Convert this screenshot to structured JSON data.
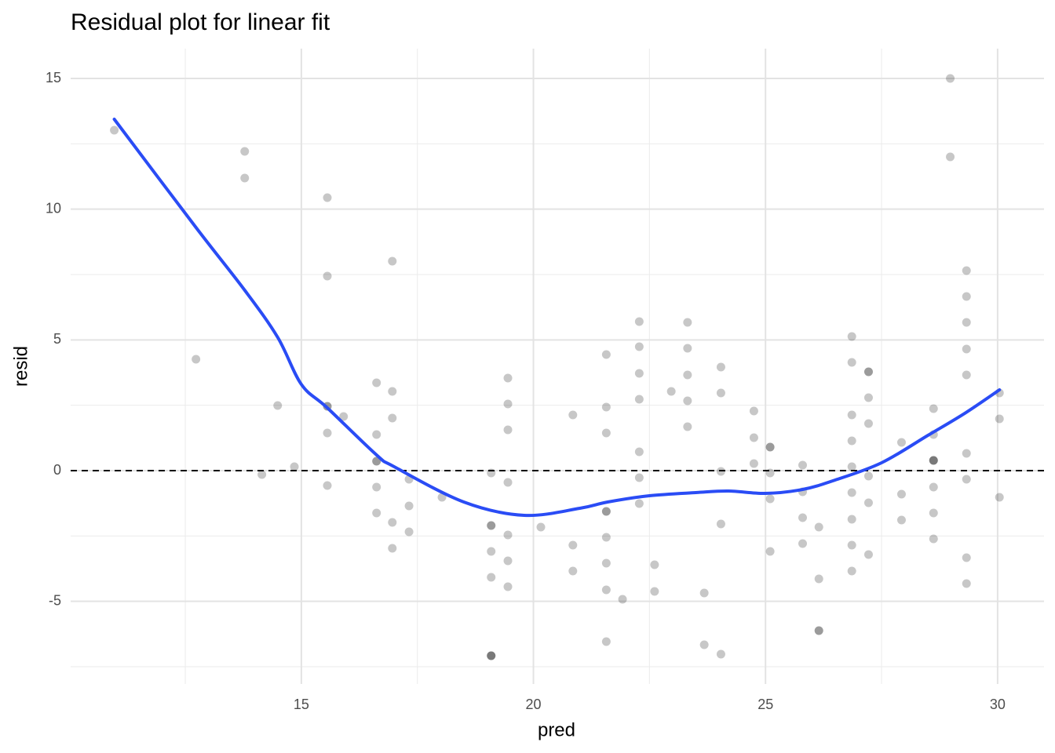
{
  "chart_data": {
    "type": "scatter",
    "title": "Residual plot for linear fit",
    "x_label": "pred",
    "y_label": "resid",
    "xlim": [
      10.03,
      31.0
    ],
    "ylim": [
      -8.16,
      16.14
    ],
    "xticks": [
      15,
      20,
      25,
      30
    ],
    "yticks": [
      -5,
      0,
      5,
      10,
      15
    ],
    "grid": true,
    "point_color": "#000000",
    "point_opacity": 0.22,
    "x": [
      10.97,
      12.73,
      13.78,
      13.78,
      14.15,
      14.49,
      14.85,
      15.56,
      15.56,
      15.56,
      15.56,
      15.56,
      15.56,
      15.91,
      16.62,
      16.62,
      16.62,
      16.62,
      16.62,
      16.62,
      16.96,
      16.96,
      16.96,
      16.96,
      16.96,
      17.32,
      17.32,
      17.32,
      18.03,
      19.09,
      19.09,
      19.09,
      19.09,
      19.09,
      19.09,
      19.09,
      19.09,
      19.45,
      19.45,
      19.45,
      19.45,
      19.45,
      19.45,
      19.45,
      20.16,
      20.85,
      20.85,
      20.85,
      21.57,
      21.57,
      21.57,
      21.57,
      21.57,
      21.57,
      21.57,
      21.57,
      21.57,
      21.92,
      22.28,
      22.28,
      22.28,
      22.28,
      22.28,
      22.28,
      22.28,
      22.61,
      22.61,
      22.97,
      23.32,
      23.32,
      23.32,
      23.32,
      23.32,
      23.68,
      23.68,
      24.04,
      24.04,
      24.04,
      24.04,
      24.04,
      24.75,
      24.75,
      24.75,
      25.1,
      25.1,
      25.1,
      25.1,
      25.1,
      25.8,
      25.8,
      25.8,
      25.8,
      26.15,
      26.15,
      26.15,
      26.15,
      26.86,
      26.86,
      26.86,
      26.86,
      26.86,
      26.86,
      26.86,
      26.86,
      26.86,
      27.22,
      27.22,
      27.22,
      27.22,
      27.22,
      27.22,
      27.22,
      27.93,
      27.93,
      27.93,
      28.62,
      28.62,
      28.62,
      28.62,
      28.62,
      28.62,
      28.62,
      28.62,
      28.98,
      28.98,
      29.33,
      29.33,
      29.33,
      29.33,
      29.33,
      29.33,
      29.33,
      29.33,
      29.33,
      30.04,
      30.04,
      30.04
    ],
    "y": [
      13.02,
      4.26,
      12.21,
      11.19,
      -0.15,
      2.49,
      0.15,
      10.44,
      7.44,
      2.46,
      2.46,
      1.44,
      -0.57,
      2.07,
      3.36,
      1.38,
      0.36,
      0.36,
      -0.63,
      -1.62,
      8.01,
      3.03,
      2.01,
      -1.98,
      -2.97,
      -0.33,
      -1.35,
      -2.34,
      -1.02,
      -0.09,
      -2.1,
      -2.1,
      -3.09,
      -4.08,
      -7.08,
      -7.08,
      -7.08,
      3.54,
      2.55,
      1.56,
      -0.45,
      -2.46,
      -3.45,
      -4.44,
      -2.16,
      2.13,
      -2.85,
      -3.84,
      4.44,
      2.43,
      1.44,
      -1.56,
      -1.56,
      -2.55,
      -3.54,
      -4.56,
      -6.54,
      -4.92,
      5.7,
      4.74,
      3.72,
      2.73,
      0.72,
      -0.27,
      -1.26,
      -3.6,
      -4.62,
      3.03,
      5.67,
      4.68,
      3.66,
      2.67,
      1.68,
      -4.68,
      -6.66,
      3.96,
      2.97,
      -0.03,
      -2.04,
      -7.02,
      2.28,
      1.26,
      0.27,
      0.9,
      0.9,
      -0.09,
      -1.08,
      -3.09,
      0.21,
      -0.81,
      -1.8,
      -2.79,
      -2.16,
      -4.14,
      -6.12,
      -6.12,
      5.13,
      4.14,
      2.13,
      1.14,
      0.15,
      -0.84,
      -1.86,
      -2.85,
      -3.84,
      3.78,
      3.78,
      2.79,
      1.8,
      -0.21,
      -1.23,
      -3.21,
      1.08,
      -0.9,
      -1.89,
      2.37,
      1.38,
      0.39,
      0.39,
      0.39,
      -0.63,
      -1.62,
      -2.61,
      15.0,
      12.0,
      7.65,
      6.66,
      5.67,
      4.65,
      3.66,
      0.66,
      -0.33,
      -3.33,
      -4.32,
      2.97,
      1.98,
      -1.02
    ],
    "smooth": {
      "color": "#2a4cf5",
      "x": [
        10.97,
        12.73,
        13.78,
        14.49,
        15.0,
        15.56,
        16.62,
        17.0,
        18.5,
        19.8,
        21.0,
        21.6,
        22.5,
        23.5,
        24.2,
        25.0,
        25.8,
        26.5,
        27.5,
        28.5,
        29.3,
        30.04
      ],
      "y": [
        13.44,
        9.3,
        6.9,
        5.1,
        3.3,
        2.4,
        0.6,
        0.15,
        -1.2,
        -1.71,
        -1.44,
        -1.2,
        -0.96,
        -0.84,
        -0.78,
        -0.87,
        -0.72,
        -0.36,
        0.3,
        1.35,
        2.2,
        3.09
      ]
    },
    "hline": {
      "value": 0,
      "style": "dashed",
      "color": "#000000"
    }
  }
}
